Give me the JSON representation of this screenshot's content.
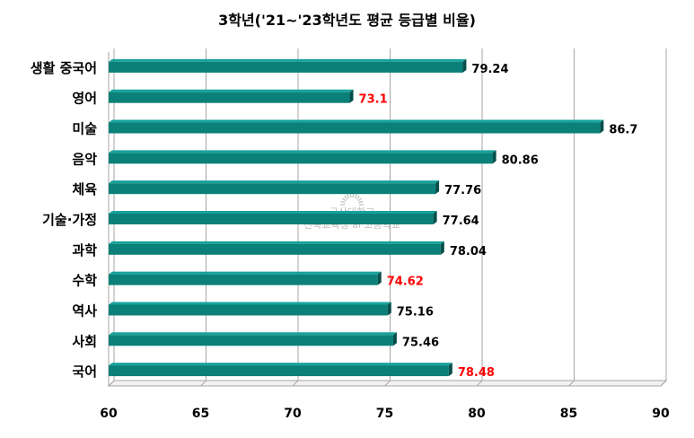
{
  "chart_data": {
    "type": "bar",
    "orientation": "horizontal",
    "title": "3학년('21~'23학년도 평균 등급별 비율)",
    "categories": [
      "생활 중국어",
      "영어",
      "미술",
      "음악",
      "체육",
      "기술·가정",
      "과학",
      "수학",
      "역사",
      "사회",
      "국어"
    ],
    "values": [
      79.24,
      73.1,
      86.7,
      80.86,
      77.76,
      77.64,
      78.04,
      74.62,
      75.16,
      75.46,
      78.48
    ],
    "value_labels": [
      "79.24",
      "73.1",
      "86.7",
      "80.86",
      "77.76",
      "77.64",
      "78.04",
      "74.62",
      "75.16",
      "75.46",
      "78.48"
    ],
    "highlighted": [
      false,
      true,
      false,
      false,
      false,
      false,
      false,
      true,
      false,
      false,
      true
    ],
    "xlim": [
      60,
      90
    ],
    "xticks": [
      "60",
      "65",
      "70",
      "75",
      "80",
      "85",
      "90"
    ],
    "xlabel": "",
    "ylabel": "",
    "grid": "vertical",
    "legend": "none",
    "colors": {
      "bar": "#0a8079",
      "bar_end": "#064f4b",
      "label": "#000000",
      "highlight_label": "#ff0000",
      "grid": "#a6a6a6"
    },
    "watermark": {
      "lines": [
        "군산대학교",
        "전북교육청 ai 고등학교"
      ]
    }
  }
}
